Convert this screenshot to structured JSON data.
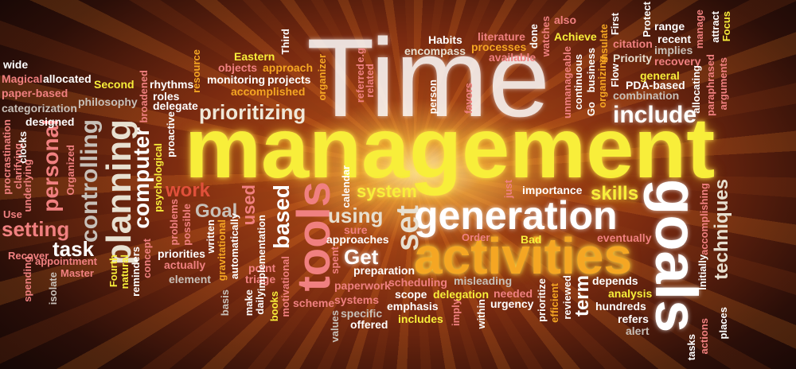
{
  "words": {
    "time": "Time",
    "management": "management",
    "activities": "activities",
    "generation": "generation",
    "goals": "goals",
    "tools": "tools",
    "planning": "planning",
    "computer": "computer",
    "personal": "personal",
    "controlling": "controlling",
    "prioritizing": "prioritizing",
    "include": "include",
    "system": "system",
    "skills": "skills",
    "techniques": "techniques",
    "set": "set",
    "using": "using",
    "setting": "setting",
    "task": "task",
    "work": "work",
    "goal": "Goal",
    "get": "Get",
    "based": "based",
    "used": "used",
    "term": "term",
    "wide": "wide",
    "magical": "Magical",
    "allocated": "allocated",
    "paper_based": "paper-based",
    "second": "Second",
    "rhythms": "rhythms",
    "roles": "roles",
    "delegate": "delegate",
    "philosophy": "philosophy",
    "categorization": "categorization",
    "designed": "designed",
    "eastern": "Eastern",
    "objects": "objects",
    "approach": "approach",
    "monitoring": "monitoring",
    "projects": "projects",
    "accomplished": "accomplished",
    "third": "Third",
    "resource": "resource",
    "habits": "Habits",
    "encompass": "encompass",
    "literature": "literature",
    "processes": "processes",
    "available": "available",
    "also": "also",
    "achieve": "Achieve",
    "range": "range",
    "recent": "recent",
    "implies": "implies",
    "recovery": "recovery",
    "priority": "Priority",
    "citation": "citation",
    "pda_based": "PDA-based",
    "combination": "combination",
    "general": "general",
    "attract": "attract",
    "focus": "Focus",
    "protect": "Protect",
    "first": "First",
    "manage": "manage",
    "importance": "importance",
    "eventually": "eventually",
    "bad": "Bad",
    "order": "Order",
    "approaches": "approaches",
    "sure": "sure",
    "preparation": "preparation",
    "paperwork": "paperwork",
    "scheduling": "scheduling",
    "misleading": "misleading",
    "scope": "scope",
    "delegation": "delegation",
    "needed": "needed",
    "systems": "systems",
    "emphasis": "emphasis",
    "urgency": "urgency",
    "specific": "specific",
    "offered": "offered",
    "includes": "includes",
    "scheme": "scheme",
    "depends": "depends",
    "analysis": "analysis",
    "hundreds": "hundreds",
    "refers": "refers",
    "alert": "alert",
    "places": "places",
    "actions": "actions",
    "tasks": "tasks",
    "initially": "Initially",
    "accomplishing": "accomplishing",
    "priorities": "priorities",
    "actually": "actually",
    "element": "element",
    "point": "point",
    "triage": "triage",
    "implementation": "implementation",
    "recover": "Recover",
    "appointment": "appointment",
    "master": "Master",
    "fourth": "Fourth",
    "use": "Use",
    "procrastination": "procrastination",
    "clarifying": "clarifying",
    "underlying": "underlying",
    "clocks": "clocks",
    "organized": "Organized",
    "broadened": "broadened",
    "proactive": "proactive",
    "psychological": "psychological",
    "problems": "problems",
    "possible": "possible",
    "concept": "concept",
    "reminders": "reminders",
    "natural": "natural",
    "spending": "spending",
    "isolate": "isolate",
    "written": "written",
    "gravitational": "gravitational",
    "automatically": "automatically",
    "make": "make",
    "daily": "daily",
    "basis": "basis",
    "books": "books",
    "motivational": "motivational",
    "spent": "spent",
    "values": "values",
    "imply": "imply",
    "within": "within",
    "prioritize": "prioritize",
    "efficient": "efficient",
    "reviewed": "reviewed",
    "calendar": "calendar",
    "just": "just",
    "organizer": "organizer",
    "referred": "referred",
    "related": "related",
    "e_g": "e.g",
    "person": "person",
    "favors": "favors",
    "done": "done",
    "watches": "watches",
    "unmanageable": "unmanageable",
    "continuous": "continuous",
    "go": "Go",
    "business": "business",
    "organizing": "organizing",
    "insulate": "insulate",
    "flow": "Flow",
    "allocating": "allocating",
    "paraphrased": "paraphrased",
    "arguments": "arguments"
  },
  "colors": {
    "yellow": "#f8ee3a",
    "orange": "#f5a623",
    "white": "#ffffff",
    "light": "#e8e0d0",
    "pink": "#f08080",
    "red": "#e0503a",
    "grey": "#c8c0b8"
  }
}
